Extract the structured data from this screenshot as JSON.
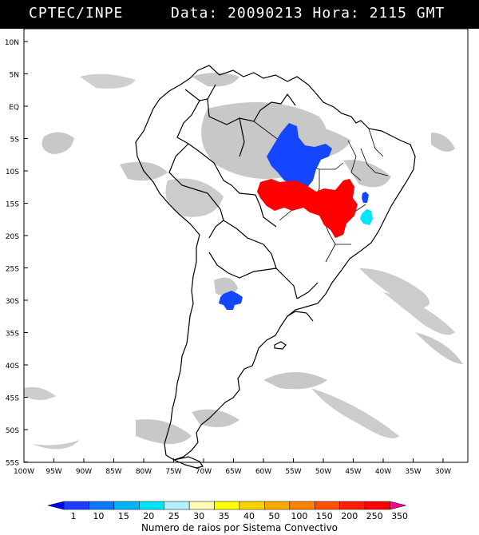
{
  "header": {
    "org": "CPTEC/INPE",
    "datetime": "Data: 20090213 Hora: 2115 GMT"
  },
  "lat_labels": [
    "10N",
    "5N",
    "EQ",
    "5S",
    "10S",
    "15S",
    "20S",
    "25S",
    "30S",
    "35S",
    "40S",
    "45S",
    "50S",
    "55S"
  ],
  "lon_labels": [
    "100W",
    "95W",
    "90W",
    "85W",
    "80W",
    "75W",
    "70W",
    "65W",
    "60W",
    "55W",
    "50W",
    "45W",
    "40W",
    "35W",
    "30W"
  ],
  "legend": {
    "values": [
      "1",
      "10",
      "15",
      "20",
      "25",
      "30",
      "35",
      "40",
      "50",
      "100",
      "150",
      "200",
      "250",
      "350"
    ],
    "colors": [
      "#0000ff",
      "#1e3cff",
      "#0a78ff",
      "#00b4ff",
      "#00e6ff",
      "#b4f0ff",
      "#fffab4",
      "#ffff00",
      "#ffd200",
      "#ffaa00",
      "#ff8200",
      "#ff5000",
      "#ff1e00",
      "#ff0000",
      "#ff0096"
    ],
    "caption": "Numero de raios por Sistema Convectivo"
  },
  "systems": [
    {
      "type": "convective-system",
      "color": "#1446ff"
    },
    {
      "type": "convective-system",
      "color": "#ff0000"
    },
    {
      "type": "convective-system",
      "color": "#00e6ff"
    },
    {
      "type": "convective-system",
      "color": "#1446ff"
    }
  ]
}
